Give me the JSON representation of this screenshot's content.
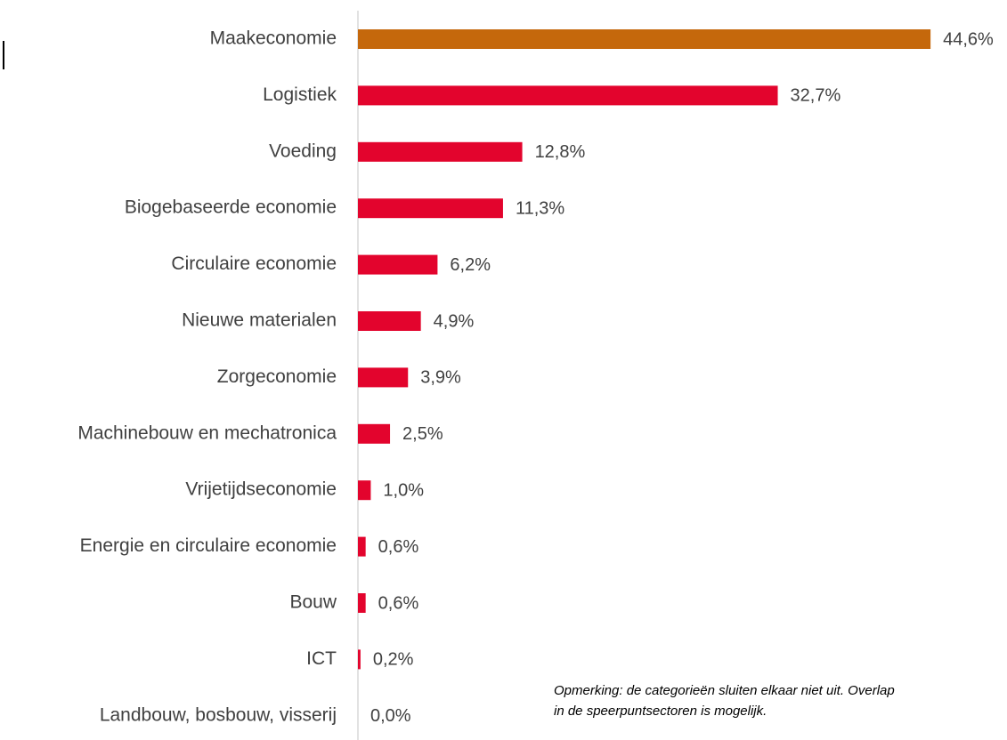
{
  "chart_data": {
    "type": "hbar",
    "categories": [
      "Maakeconomie",
      "Logistiek",
      "Voeding",
      "Biogebaseerde economie",
      "Circulaire economie",
      "Nieuwe materialen",
      "Zorgeconomie",
      "Machinebouw en mechatronica",
      "Vrijetijdseconomie",
      "Energie en circulaire economie",
      "Bouw",
      "ICT",
      "Landbouw, bosbouw, visserij"
    ],
    "values": [
      44.6,
      32.7,
      12.8,
      11.3,
      6.2,
      4.9,
      3.9,
      2.5,
      1.0,
      0.6,
      0.6,
      0.2,
      0.0
    ],
    "value_labels": [
      "44,6%",
      "32,7%",
      "12,8%",
      "11,3%",
      "6,2%",
      "4,9%",
      "3,9%",
      "2,5%",
      "1,0%",
      "0,6%",
      "0,6%",
      "0,2%",
      "0,0%"
    ],
    "colors": [
      "#c5680c",
      "#e3042d",
      "#e3042d",
      "#e3042d",
      "#e3042d",
      "#e3042d",
      "#e3042d",
      "#e3042d",
      "#e3042d",
      "#e3042d",
      "#e3042d",
      "#e3042d",
      "#e3042d"
    ],
    "xlim": [
      0,
      50
    ],
    "annotations": [
      "Opmerking: de categorieën sluiten elkaar niet uit. Overlap",
      "in de speerpuntsectoren is mogelijk."
    ]
  }
}
